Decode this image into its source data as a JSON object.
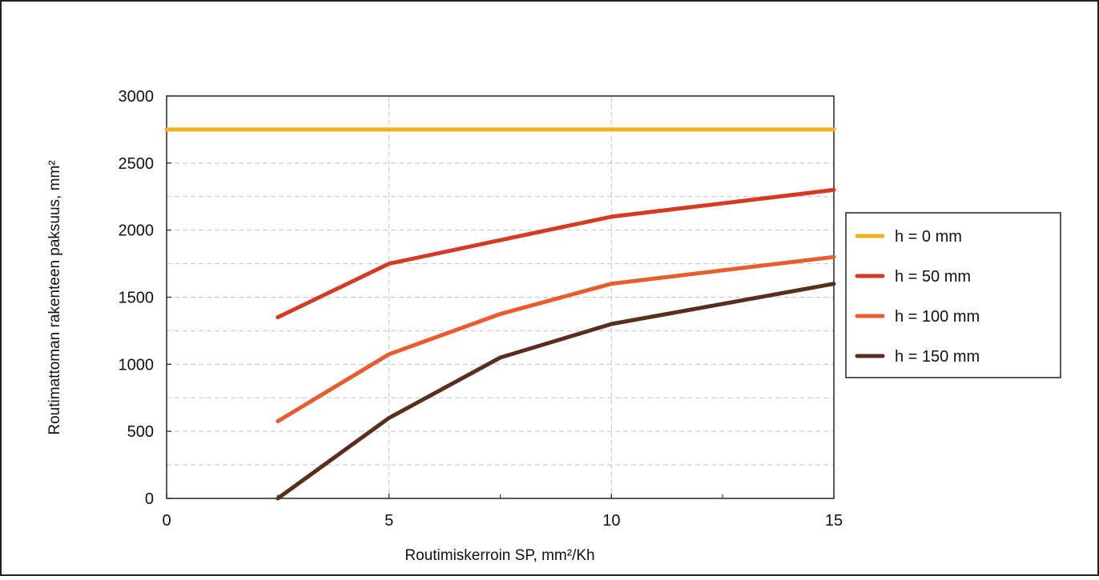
{
  "chart_data": {
    "type": "line",
    "title": "",
    "xlabel": "Routimiskerroin SP, mm²/Kh",
    "ylabel": "Routimattoman rakenteen paksuus, mm²",
    "xlim": [
      0,
      15
    ],
    "ylim": [
      0,
      3000
    ],
    "x_ticks": [
      "0",
      "5",
      "10",
      "15"
    ],
    "y_ticks": [
      "0",
      "500",
      "1000",
      "1500",
      "2000",
      "2500",
      "3000"
    ],
    "grid": "dashed",
    "legend_position": "right",
    "series": [
      {
        "name": "h = 0 mm",
        "color": "#f0b21f",
        "points": [
          [
            0,
            2750
          ],
          [
            5,
            2750
          ],
          [
            10,
            2750
          ],
          [
            15,
            2750
          ]
        ]
      },
      {
        "name": "h = 50 mm",
        "color": "#d53a24",
        "points": [
          [
            2.5,
            1350
          ],
          [
            5,
            1750
          ],
          [
            7.5,
            1925
          ],
          [
            10,
            2100
          ],
          [
            15,
            2300
          ]
        ]
      },
      {
        "name": "h = 100 mm",
        "color": "#ea5c2c",
        "points": [
          [
            2.5,
            575
          ],
          [
            5,
            1075
          ],
          [
            7.5,
            1375
          ],
          [
            10,
            1600
          ],
          [
            15,
            1800
          ]
        ]
      },
      {
        "name": "h = 150 mm",
        "color": "#5a2e1e",
        "points": [
          [
            2.5,
            0
          ],
          [
            5,
            600
          ],
          [
            7.5,
            1050
          ],
          [
            10,
            1300
          ],
          [
            15,
            1600
          ]
        ]
      }
    ]
  }
}
